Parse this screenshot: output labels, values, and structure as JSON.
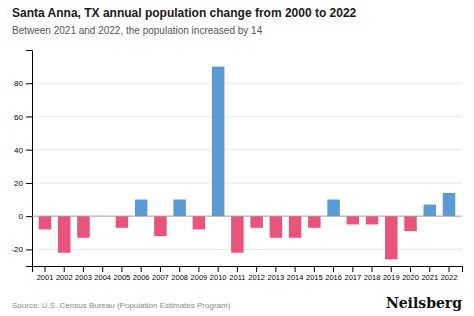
{
  "chart_data": {
    "type": "bar",
    "title": "Santa Anna, TX annual population change from 2000 to 2022",
    "subtitle": "Between 2021 and 2022, the population increased by 14",
    "source": "Source: U.S. Census Bureau (Population Estimates Program)",
    "brand": "Neilsberg",
    "categories": [
      "2001",
      "2002",
      "2003",
      "2004",
      "2005",
      "2006",
      "2007",
      "2008",
      "2009",
      "2010",
      "2011",
      "2012",
      "2013",
      "2014",
      "2015",
      "2016",
      "2017",
      "2018",
      "2019",
      "2020",
      "2021",
      "2022"
    ],
    "values": [
      -8,
      -22,
      -13,
      0,
      -7,
      10,
      -12,
      10,
      -8,
      90,
      -22,
      -7,
      -13,
      -13,
      -7,
      10,
      -5,
      -5,
      -26,
      -9,
      7,
      14
    ],
    "colors": [
      "#e8547a",
      "#e8547a",
      "#e8547a",
      "#5b9bd5",
      "#e8547a",
      "#5b9bd5",
      "#e8547a",
      "#5b9bd5",
      "#e8547a",
      "#5b9bd5",
      "#e8547a",
      "#e8547a",
      "#e8547a",
      "#e8547a",
      "#e8547a",
      "#5b9bd5",
      "#e8547a",
      "#e8547a",
      "#e8547a",
      "#e8547a",
      "#5b9bd5",
      "#5b9bd5"
    ],
    "ylim": [
      -30,
      100
    ],
    "yticks": [
      -20,
      0,
      20,
      40,
      60,
      80
    ],
    "grid": true
  }
}
